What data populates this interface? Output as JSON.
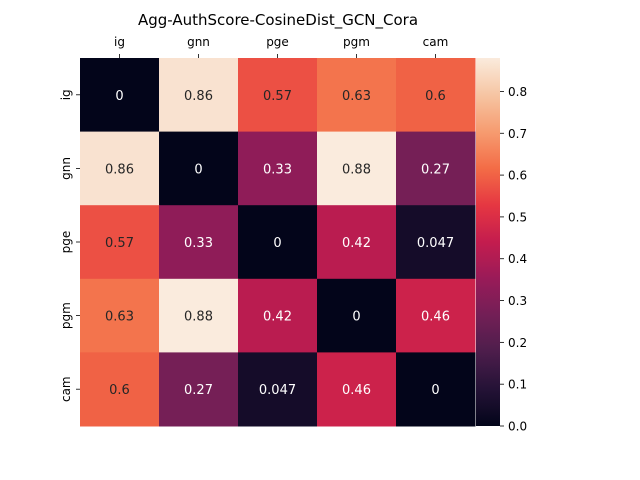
{
  "chart_data": {
    "type": "heatmap",
    "title": "Agg-AuthScore-CosineDist_GCN_Cora",
    "x_labels": [
      "ig",
      "gnn",
      "pge",
      "pgm",
      "cam"
    ],
    "y_labels": [
      "ig",
      "gnn",
      "pge",
      "pgm",
      "cam"
    ],
    "values": [
      [
        0,
        0.86,
        0.57,
        0.63,
        0.6
      ],
      [
        0.86,
        0,
        0.33,
        0.88,
        0.27
      ],
      [
        0.57,
        0.33,
        0,
        0.42,
        0.047
      ],
      [
        0.63,
        0.88,
        0.42,
        0,
        0.46
      ],
      [
        0.6,
        0.27,
        0.047,
        0.46,
        0
      ]
    ],
    "annotations": [
      [
        "0",
        "0.86",
        "0.57",
        "0.63",
        "0.6"
      ],
      [
        "0.86",
        "0",
        "0.33",
        "0.88",
        "0.27"
      ],
      [
        "0.57",
        "0.33",
        "0",
        "0.42",
        "0.047"
      ],
      [
        "0.63",
        "0.88",
        "0.42",
        "0",
        "0.46"
      ],
      [
        "0.6",
        "0.27",
        "0.047",
        "0.46",
        "0"
      ]
    ],
    "colorbar": {
      "min": 0.0,
      "max": 0.88,
      "ticks": [
        0.0,
        0.1,
        0.2,
        0.3,
        0.4,
        0.5,
        0.6,
        0.7,
        0.8
      ],
      "tick_labels": [
        "0.0",
        "0.1",
        "0.2",
        "0.3",
        "0.4",
        "0.5",
        "0.6",
        "0.7",
        "0.8"
      ]
    },
    "colormap": "rocket",
    "x_tick_position": "top",
    "grid": false
  }
}
